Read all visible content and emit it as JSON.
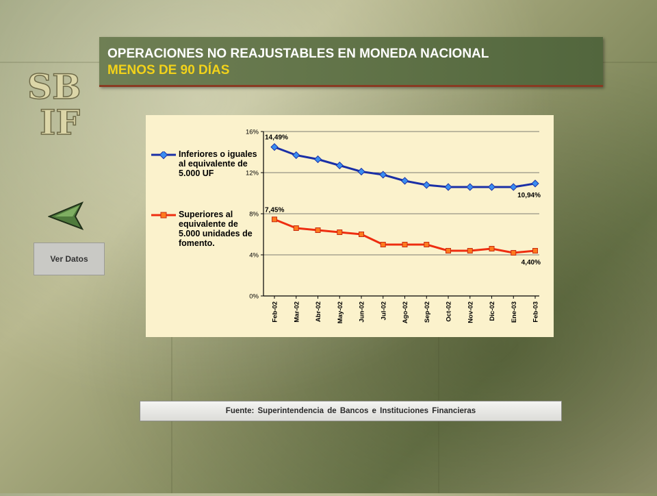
{
  "header": {
    "title_line1": "OPERACIONES NO REAJUSTABLES EN MONEDA NACIONAL",
    "title_line2": "MENOS DE 90 DÍAS"
  },
  "logo": {
    "letters_top": "SB",
    "letters_bottom": "IF"
  },
  "nav": {
    "ver_datos_label": "Ver Datos",
    "back_icon": "back-arrow-icon"
  },
  "footer": {
    "source": "Fuente: Superintendencia de Bancos e Instituciones Financieras"
  },
  "colors": {
    "series1": "#1a2fa6",
    "series2": "#ee2d10",
    "chart_bg": "#fbf2cc"
  },
  "chart_data": {
    "type": "line",
    "categories": [
      "Feb-02",
      "Mar-02",
      "Abr-02",
      "May-02",
      "Jun-02",
      "Jul-02",
      "Ago-02",
      "Sep-02",
      "Oct-02",
      "Nov-02",
      "Dic-02",
      "Ene-03",
      "Feb-03"
    ],
    "yticks": [
      "0%",
      "4%",
      "8%",
      "12%",
      "16%"
    ],
    "ylim": [
      0,
      16
    ],
    "grid": true,
    "legend_position": "left",
    "series": [
      {
        "name": "Inferiores o iguales al equivalente de 5.000 UF",
        "values": [
          14.49,
          13.7,
          13.3,
          12.7,
          12.1,
          11.8,
          11.2,
          10.8,
          10.6,
          10.6,
          10.6,
          10.6,
          10.94
        ],
        "first_label": "14,49%",
        "last_label": "10,94%"
      },
      {
        "name": "Superiores al equivalente de 5.000 unidades de fomento.",
        "values": [
          7.45,
          6.6,
          6.4,
          6.2,
          6.0,
          5.0,
          5.0,
          5.0,
          4.4,
          4.4,
          4.6,
          4.2,
          4.4
        ],
        "first_label": "7,45%",
        "last_label": "4,40%"
      }
    ]
  }
}
